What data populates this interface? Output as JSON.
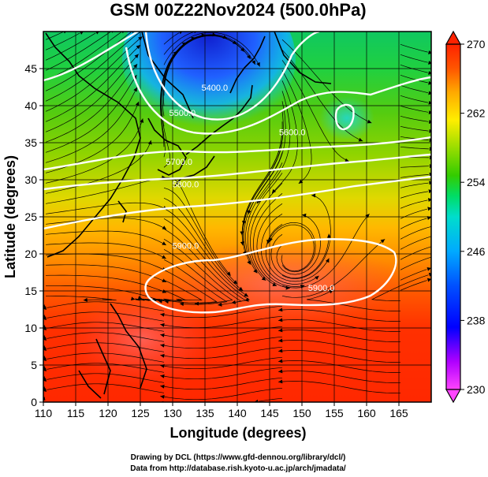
{
  "chart_data": {
    "type": "heatmap",
    "title": "GSM 00Z22Nov2024 (500.0hPa)",
    "xlabel": "Longitude (degrees)",
    "ylabel": "Latitude  (degrees)",
    "xlim": [
      110,
      170
    ],
    "ylim": [
      0,
      50
    ],
    "x_ticks": [
      110,
      115,
      120,
      125,
      130,
      135,
      140,
      145,
      150,
      155,
      160,
      165
    ],
    "y_ticks": [
      0,
      5,
      10,
      15,
      20,
      25,
      30,
      35,
      40,
      45
    ],
    "grid": true,
    "colorbar": {
      "min": 230,
      "max": 270,
      "ticks": [
        230,
        238,
        246,
        254,
        262,
        270
      ],
      "colors": [
        "#ff44ff",
        "#b000ff",
        "#0000ff",
        "#0050ff",
        "#00aaff",
        "#00ddcc",
        "#00dd66",
        "#33cc00",
        "#99dd00",
        "#ffee00",
        "#ffaa00",
        "#ff5500",
        "#ff2200"
      ]
    },
    "contours": [
      {
        "label": "5400.0",
        "lon": 136.5,
        "lat": 42
      },
      {
        "label": "5500.0",
        "lon": 131.5,
        "lat": 38.6
      },
      {
        "label": "5600.0",
        "lon": 148.5,
        "lat": 36
      },
      {
        "label": "5700.0",
        "lon": 131,
        "lat": 32
      },
      {
        "label": "5800.0",
        "lon": 132,
        "lat": 29
      },
      {
        "label": "5900.0",
        "lon": 132,
        "lat": 20.7
      },
      {
        "label": "5900.0",
        "lon": 153,
        "lat": 15
      }
    ]
  },
  "credits": {
    "line1": "Drawing by DCL (https://www.gfd-dennou.org/library/dcl/)",
    "line2": "Data from http://database.rish.kyoto-u.ac.jp/arch/jmadata/"
  }
}
